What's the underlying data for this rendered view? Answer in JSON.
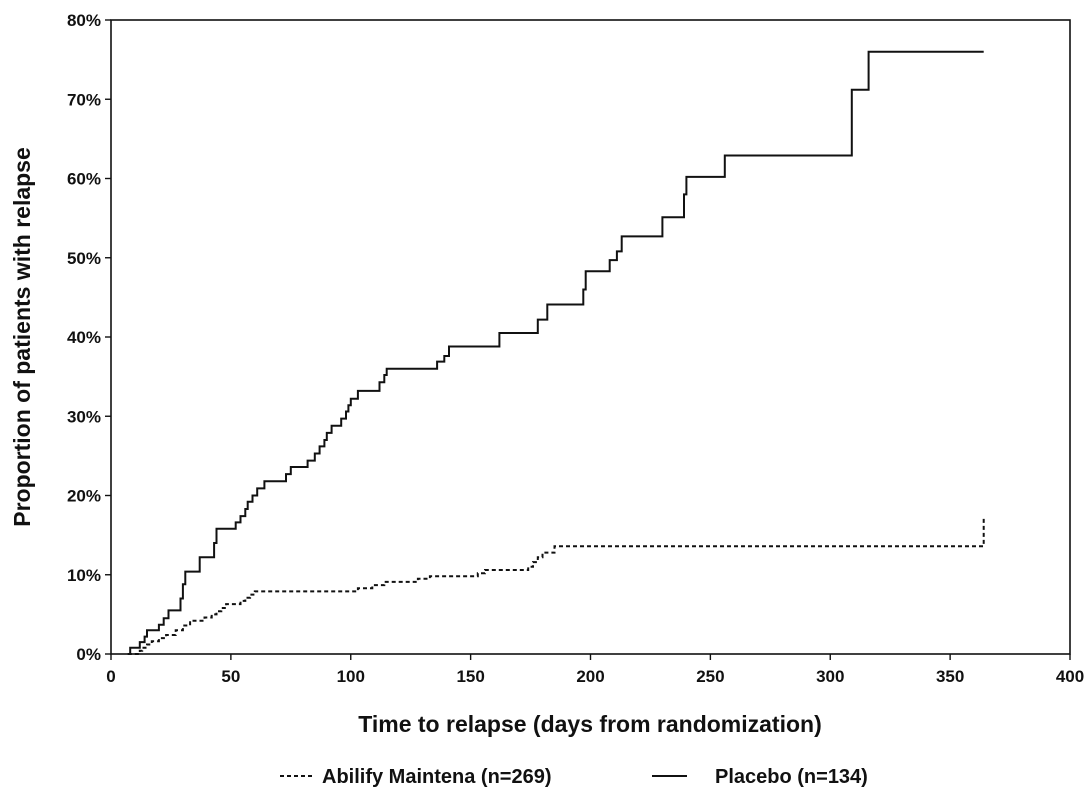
{
  "chart_data": {
    "type": "line",
    "title": "",
    "xlabel": "Time to relapse (days from randomization)",
    "ylabel": "Proportion of patients with relapse",
    "xlim": [
      0,
      400
    ],
    "ylim": [
      0,
      80
    ],
    "x_ticks": [
      0,
      50,
      100,
      150,
      200,
      250,
      300,
      350,
      400
    ],
    "x_tick_labels": [
      "0",
      "50",
      "100",
      "150",
      "200",
      "250",
      "300",
      "350",
      "400"
    ],
    "y_ticks": [
      0,
      10,
      20,
      30,
      40,
      50,
      60,
      70,
      80
    ],
    "y_tick_labels": [
      "0%",
      "10%",
      "20%",
      "30%",
      "40%",
      "50%",
      "60%",
      "70%",
      "80%"
    ],
    "grid": false,
    "legend_position": "bottom",
    "series": [
      {
        "name": "Abilify Maintena (n=269)",
        "style": "dashed",
        "color": "#111111",
        "step": true,
        "points": [
          [
            7,
            0
          ],
          [
            12,
            0.4
          ],
          [
            13,
            0.8
          ],
          [
            15,
            1.2
          ],
          [
            17,
            1.6
          ],
          [
            20,
            2.0
          ],
          [
            23,
            2.4
          ],
          [
            27,
            3.0
          ],
          [
            30,
            3.6
          ],
          [
            33,
            4.2
          ],
          [
            39,
            4.6
          ],
          [
            42,
            5.0
          ],
          [
            44,
            5.4
          ],
          [
            46,
            5.8
          ],
          [
            48,
            6.3
          ],
          [
            54,
            6.7
          ],
          [
            56,
            7.1
          ],
          [
            58,
            7.5
          ],
          [
            60,
            7.9
          ],
          [
            103,
            8.3
          ],
          [
            109,
            8.7
          ],
          [
            114,
            9.1
          ],
          [
            128,
            9.5
          ],
          [
            133,
            9.8
          ],
          [
            153,
            10.2
          ],
          [
            156,
            10.6
          ],
          [
            174,
            11.0
          ],
          [
            176,
            11.6
          ],
          [
            178,
            12.2
          ],
          [
            180,
            12.8
          ],
          [
            185,
            13.6
          ],
          [
            364,
            13.6
          ],
          [
            364,
            17.2
          ]
        ]
      },
      {
        "name": "Placebo (n=134)",
        "style": "solid",
        "color": "#111111",
        "step": true,
        "points": [
          [
            7,
            0
          ],
          [
            8,
            0.8
          ],
          [
            12,
            1.5
          ],
          [
            14,
            2.2
          ],
          [
            15,
            3.0
          ],
          [
            20,
            3.7
          ],
          [
            22,
            4.5
          ],
          [
            24,
            5.5
          ],
          [
            29,
            7.0
          ],
          [
            30,
            8.8
          ],
          [
            31,
            10.4
          ],
          [
            37,
            12.2
          ],
          [
            43,
            14.0
          ],
          [
            44,
            15.8
          ],
          [
            52,
            16.6
          ],
          [
            54,
            17.4
          ],
          [
            56,
            18.3
          ],
          [
            57,
            19.2
          ],
          [
            59,
            20.0
          ],
          [
            61,
            20.9
          ],
          [
            64,
            21.8
          ],
          [
            73,
            22.7
          ],
          [
            75,
            23.6
          ],
          [
            82,
            24.4
          ],
          [
            85,
            25.3
          ],
          [
            87,
            26.2
          ],
          [
            89,
            27.0
          ],
          [
            90,
            27.9
          ],
          [
            92,
            28.8
          ],
          [
            96,
            29.7
          ],
          [
            98,
            30.6
          ],
          [
            99,
            31.4
          ],
          [
            100,
            32.2
          ],
          [
            103,
            33.2
          ],
          [
            112,
            34.3
          ],
          [
            114,
            35.2
          ],
          [
            115,
            36.0
          ],
          [
            136,
            36.9
          ],
          [
            139,
            37.6
          ],
          [
            141,
            38.8
          ],
          [
            162,
            40.5
          ],
          [
            178,
            42.2
          ],
          [
            182,
            44.1
          ],
          [
            197,
            46.0
          ],
          [
            198,
            48.3
          ],
          [
            208,
            49.7
          ],
          [
            211,
            50.8
          ],
          [
            213,
            52.7
          ],
          [
            230,
            55.1
          ],
          [
            239,
            58.0
          ],
          [
            240,
            60.2
          ],
          [
            256,
            62.9
          ],
          [
            309,
            71.2
          ],
          [
            316,
            76.0
          ],
          [
            364,
            76.0
          ]
        ]
      }
    ]
  }
}
